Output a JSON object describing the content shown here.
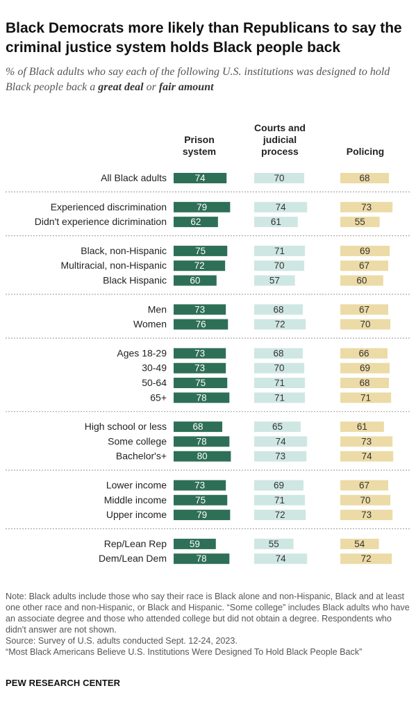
{
  "title": "Black Democrats more likely than Republicans to say the criminal justice system holds Black people back",
  "subtitle": {
    "prefix": "% of Black adults who say each of the following U.S. institutions was designed to hold Black people back a ",
    "bold1": "great deal",
    "middle": " or ",
    "bold2": "fair amount"
  },
  "colors": {
    "prison": "#2e6f57",
    "courts": "#cfe7e3",
    "policing": "#ecdba6",
    "separator": "#a8a8a8"
  },
  "chart_data": {
    "type": "bar",
    "columns": [
      {
        "key": "prison",
        "header": [
          "Prison",
          "system"
        ]
      },
      {
        "key": "courts",
        "header": [
          "Courts and",
          "judicial",
          "process"
        ]
      },
      {
        "key": "policing",
        "header": [
          "Policing"
        ]
      }
    ],
    "groups": [
      {
        "rows": [
          {
            "label": "All Black adults",
            "values": [
              74,
              70,
              68
            ]
          }
        ]
      },
      {
        "rows": [
          {
            "label": "Experienced discrimination",
            "values": [
              79,
              74,
              73
            ]
          },
          {
            "label": "Didn't experience dicrimination",
            "values": [
              62,
              61,
              55
            ]
          }
        ]
      },
      {
        "rows": [
          {
            "label": "Black, non-Hispanic",
            "values": [
              75,
              71,
              69
            ]
          },
          {
            "label": "Multiracial, non-Hispanic",
            "values": [
              72,
              70,
              67
            ]
          },
          {
            "label": "Black Hispanic",
            "values": [
              60,
              57,
              60
            ]
          }
        ]
      },
      {
        "rows": [
          {
            "label": "Men",
            "values": [
              73,
              68,
              67
            ]
          },
          {
            "label": "Women",
            "values": [
              76,
              72,
              70
            ]
          }
        ]
      },
      {
        "rows": [
          {
            "label": "Ages 18-29",
            "values": [
              73,
              68,
              66
            ]
          },
          {
            "label": "30-49",
            "values": [
              73,
              70,
              69
            ]
          },
          {
            "label": "50-64",
            "values": [
              75,
              71,
              68
            ]
          },
          {
            "label": "65+",
            "values": [
              78,
              71,
              71
            ]
          }
        ]
      },
      {
        "rows": [
          {
            "label": "High school or less",
            "values": [
              68,
              65,
              61
            ]
          },
          {
            "label": "Some college",
            "values": [
              78,
              74,
              73
            ]
          },
          {
            "label": "Bachelor's+",
            "values": [
              80,
              73,
              74
            ]
          }
        ]
      },
      {
        "rows": [
          {
            "label": "Lower income",
            "values": [
              73,
              69,
              67
            ]
          },
          {
            "label": "Middle income",
            "values": [
              75,
              71,
              70
            ]
          },
          {
            "label": "Upper income",
            "values": [
              79,
              72,
              73
            ]
          }
        ]
      },
      {
        "rows": [
          {
            "label": "Rep/Lean Rep",
            "values": [
              59,
              55,
              54
            ]
          },
          {
            "label": "Dem/Lean Dem",
            "values": [
              78,
              74,
              72
            ]
          }
        ]
      }
    ]
  },
  "notes": [
    "Note: Black adults include those who say their race is Black alone and non-Hispanic, Black and at least one other race and non-Hispanic, or Black and Hispanic. “Some college” includes Black adults who have an associate degree and those who attended college but did not obtain a degree. Respondents who didn't answer are not shown.",
    "Source: Survey of U.S. adults conducted Sept. 12-24, 2023.",
    "“Most Black Americans Believe U.S. Institutions Were Designed To Hold Black People Back”"
  ],
  "brand": "PEW RESEARCH CENTER"
}
